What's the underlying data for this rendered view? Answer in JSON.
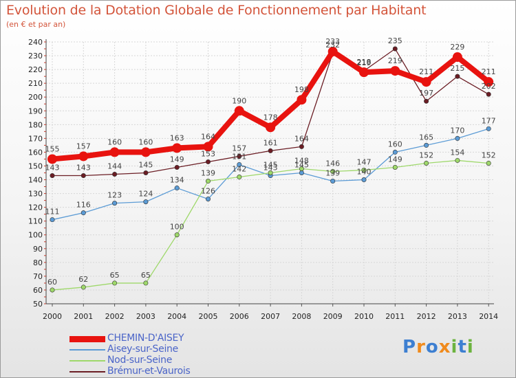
{
  "header": {
    "title": "Evolution de la Dotation Globale de Fonctionnement par Habitant",
    "subtitle": "(en € et par an)"
  },
  "logo": {
    "text": "Proxiti",
    "letters": [
      {
        "ch": "P",
        "color": "#3d7fd1"
      },
      {
        "ch": "r",
        "color": "#f08a1c"
      },
      {
        "ch": "o",
        "color": "#3d7fd1"
      },
      {
        "ch": "x",
        "color": "#f08a1c"
      },
      {
        "ch": "i",
        "color": "#6cb33f"
      },
      {
        "ch": "t",
        "color": "#3d7fd1"
      },
      {
        "ch": "i",
        "color": "#6cb33f"
      }
    ]
  },
  "chart_data": {
    "type": "line",
    "title": "Evolution de la Dotation Globale de Fonctionnement par Habitant",
    "subtitle": "(en € et par an)",
    "xlabel": "",
    "ylabel": "",
    "x": [
      "2000",
      "2001",
      "2002",
      "2003",
      "2004",
      "2005",
      "2006",
      "2007",
      "2008",
      "2009",
      "2010",
      "2011",
      "2012",
      "2013",
      "2014"
    ],
    "ylim": [
      50,
      240
    ],
    "yticks": [
      50,
      60,
      70,
      80,
      90,
      100,
      110,
      120,
      130,
      140,
      150,
      160,
      170,
      180,
      190,
      200,
      210,
      220,
      230,
      240
    ],
    "grid": true,
    "legend_position": "bottom-left",
    "series": [
      {
        "name": "CHEMIN-D'AISEY",
        "color": "#e8130f",
        "values": [
          155,
          157,
          160,
          160,
          163,
          164,
          190,
          178,
          198,
          233,
          218,
          219,
          211,
          229,
          211
        ]
      },
      {
        "name": "Aisey-sur-Seine",
        "color": "#5b9bd5",
        "values": [
          111,
          116,
          123,
          124,
          134,
          126,
          151,
          143,
          145,
          139,
          140,
          160,
          165,
          170,
          177
        ]
      },
      {
        "name": "Nod-sur-Seine",
        "color": "#9ed86a",
        "values": [
          60,
          62,
          65,
          65,
          100,
          139,
          142,
          145,
          148,
          146,
          147,
          149,
          152,
          154,
          152
        ]
      },
      {
        "name": "Brémur-et-Vaurois",
        "color": "#6b1d24",
        "values": [
          143,
          143,
          144,
          145,
          149,
          153,
          157,
          161,
          164,
          232,
          219,
          235,
          197,
          215,
          202
        ]
      }
    ]
  }
}
